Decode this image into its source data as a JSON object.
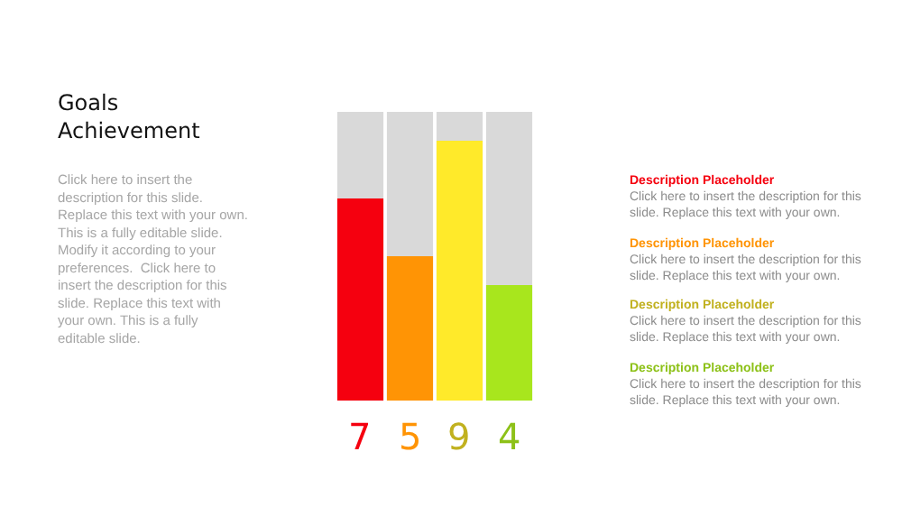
{
  "chart_data": {
    "type": "bar",
    "title": "Goals Achievement",
    "subtitle": "Click here to insert the description for this slide. Replace this text with your own. This is a fully editable slide. Modify it according to your preferences.  Click here to insert the description for this slide. Replace this text with your own. This is a fully editable slide.",
    "categories": [
      null,
      null,
      null,
      null
    ],
    "values": [
      7,
      5,
      9,
      4
    ],
    "colors": [
      "#f5000f",
      "#ff9405",
      "#ffea2a",
      "#a8e61d"
    ],
    "ylim": [
      0,
      10
    ],
    "data_labels": true,
    "tick_labels": false,
    "annotations": [
      "Description Placeholder",
      "Click here to insert the description for this slide. Replace this text with your own.",
      "Description Placeholder",
      "Click here to insert the description for this slide. Replace this text with your own.",
      "Description Placeholder",
      "Click here to insert the description for this slide. Replace this text with your own.",
      "Description Placeholder",
      "Click here to insert the description for this slide. Replace this text with your own."
    ]
  }
}
